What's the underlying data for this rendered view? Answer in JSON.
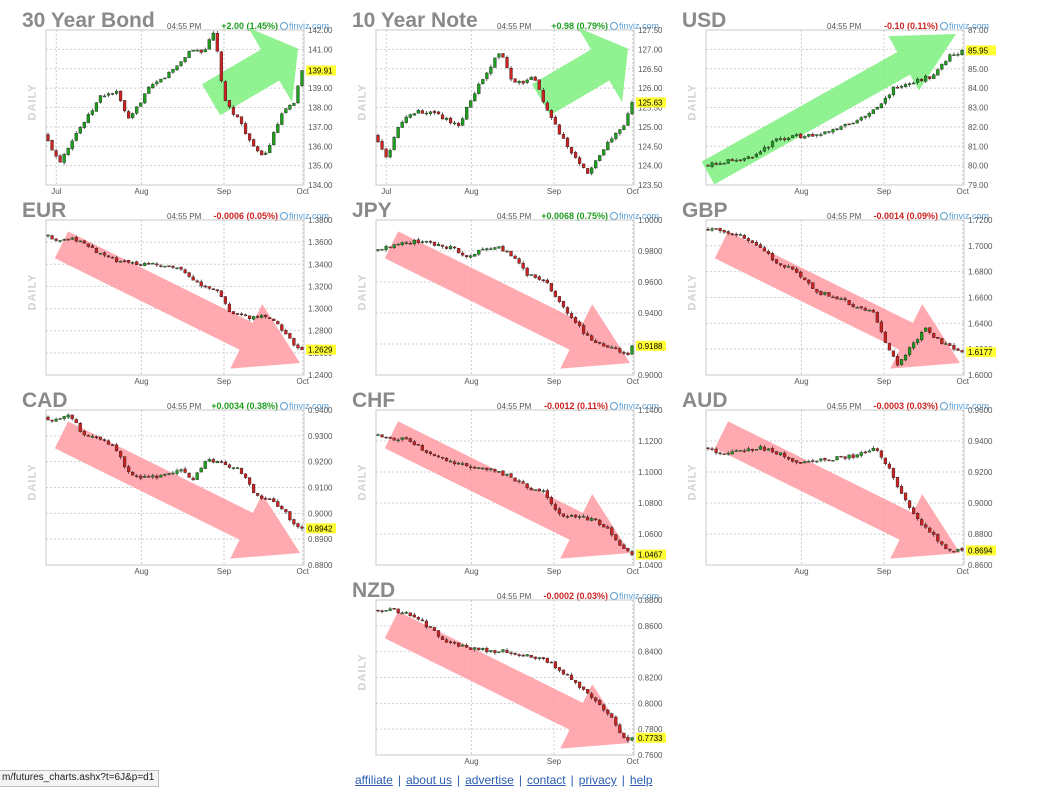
{
  "time_label": "04:55 PM",
  "brand": "finviz.com",
  "side_label": "DAILY",
  "status_url": "m/futures_charts.ashx?t=6J&p=d1",
  "footer_links": [
    "affiliate",
    "about us",
    "advertise",
    "contact",
    "privacy",
    "help"
  ],
  "colors": {
    "up": "#1e9e1e",
    "down": "#cc2222",
    "green_arrow": "#7cf07c",
    "red_arrow": "#ff9aa2",
    "last_price_bg": "#ffff33"
  },
  "chart_data": [
    {
      "id": "bond30",
      "type": "candlestick",
      "title": "30 Year Bond",
      "change": "+2.00 (1.45%)",
      "dir": "up",
      "last": 139.91,
      "last_label": "139.91",
      "ylim": [
        134,
        142
      ],
      "yticks": [
        "134.00",
        "135.00",
        "136.00",
        "137.00",
        "138.00",
        "139.00",
        "140.00",
        "141.00",
        "142.00"
      ],
      "xticks": [
        {
          "label": "Jul",
          "pos": 0.04
        },
        {
          "label": "Aug",
          "pos": 0.37
        },
        {
          "label": "Sep",
          "pos": 0.69
        },
        {
          "label": "Oct",
          "pos": 0.995
        }
      ],
      "arrow": "up",
      "arrow_color": "green",
      "anchors": [
        [
          0,
          136.6
        ],
        [
          0.06,
          135.2
        ],
        [
          0.12,
          136.6
        ],
        [
          0.18,
          137.7
        ],
        [
          0.22,
          138.6
        ],
        [
          0.28,
          138.8
        ],
        [
          0.33,
          137.3
        ],
        [
          0.4,
          138.9
        ],
        [
          0.47,
          139.6
        ],
        [
          0.52,
          140.2
        ],
        [
          0.57,
          141.0
        ],
        [
          0.62,
          140.9
        ],
        [
          0.66,
          141.9
        ],
        [
          0.7,
          138.3
        ],
        [
          0.76,
          137.3
        ],
        [
          0.82,
          135.7
        ],
        [
          0.86,
          135.6
        ],
        [
          0.92,
          137.6
        ],
        [
          0.97,
          138.3
        ],
        [
          1,
          139.91
        ]
      ]
    },
    {
      "id": "note10",
      "type": "candlestick",
      "title": "10 Year Note",
      "change": "+0.98 (0.79%)",
      "dir": "up",
      "last": 125.63,
      "last_label": "125.63",
      "ylim": [
        123.5,
        127.5
      ],
      "yticks": [
        "123.50",
        "124.00",
        "124.50",
        "125.00",
        "125.50",
        "126.00",
        "126.50",
        "127.00",
        "127.50"
      ],
      "xticks": [
        {
          "label": "Jul",
          "pos": 0.04
        },
        {
          "label": "Aug",
          "pos": 0.37
        },
        {
          "label": "Sep",
          "pos": 0.69
        },
        {
          "label": "Oct",
          "pos": 0.995
        }
      ],
      "arrow": "up",
      "arrow_color": "green",
      "anchors": [
        [
          0,
          124.8
        ],
        [
          0.05,
          124.2
        ],
        [
          0.1,
          125.1
        ],
        [
          0.17,
          125.4
        ],
        [
          0.25,
          125.3
        ],
        [
          0.33,
          125.0
        ],
        [
          0.38,
          125.8
        ],
        [
          0.45,
          126.5
        ],
        [
          0.49,
          127.0
        ],
        [
          0.53,
          126.2
        ],
        [
          0.58,
          126.1
        ],
        [
          0.62,
          126.3
        ],
        [
          0.66,
          125.6
        ],
        [
          0.72,
          124.8
        ],
        [
          0.78,
          124.2
        ],
        [
          0.83,
          123.8
        ],
        [
          0.88,
          124.3
        ],
        [
          0.94,
          124.9
        ],
        [
          0.97,
          125.0
        ],
        [
          1,
          125.63
        ]
      ]
    },
    {
      "id": "usd",
      "type": "candlestick",
      "title": "USD",
      "change": "-0.10 (0.11%)",
      "dir": "down",
      "last": 85.95,
      "last_label": "85.95",
      "ylim": [
        79,
        87
      ],
      "yticks": [
        "79.00",
        "80.00",
        "81.00",
        "82.00",
        "83.00",
        "84.00",
        "85.00",
        "86.00",
        "87.00"
      ],
      "xticks": [
        {
          "label": "Aug",
          "pos": 0.37
        },
        {
          "label": "Sep",
          "pos": 0.69
        },
        {
          "label": "Oct",
          "pos": 0.995
        }
      ],
      "arrow": "up",
      "arrow_color": "green",
      "anchors": [
        [
          0,
          80.0
        ],
        [
          0.08,
          80.2
        ],
        [
          0.15,
          80.3
        ],
        [
          0.2,
          80.6
        ],
        [
          0.28,
          81.3
        ],
        [
          0.36,
          81.5
        ],
        [
          0.45,
          81.6
        ],
        [
          0.52,
          82.0
        ],
        [
          0.6,
          82.4
        ],
        [
          0.68,
          83.0
        ],
        [
          0.74,
          84.1
        ],
        [
          0.8,
          84.3
        ],
        [
          0.88,
          84.6
        ],
        [
          0.95,
          85.6
        ],
        [
          1,
          85.95
        ]
      ]
    },
    {
      "id": "eur",
      "type": "candlestick",
      "title": "EUR",
      "change": "-0.0006 (0.05%)",
      "dir": "down",
      "last": 1.2629,
      "last_label": "1.2629",
      "ylim": [
        1.24,
        1.38
      ],
      "yticks": [
        "1.2400",
        "1.2600",
        "1.2800",
        "1.3000",
        "1.3200",
        "1.3400",
        "1.3600",
        "1.3800"
      ],
      "xticks": [
        {
          "label": "Aug",
          "pos": 0.37
        },
        {
          "label": "Sep",
          "pos": 0.69
        },
        {
          "label": "Oct",
          "pos": 0.995
        }
      ],
      "arrow": "down",
      "arrow_color": "red",
      "anchors": [
        [
          0,
          1.366
        ],
        [
          0.06,
          1.362
        ],
        [
          0.12,
          1.363
        ],
        [
          0.2,
          1.352
        ],
        [
          0.28,
          1.344
        ],
        [
          0.36,
          1.341
        ],
        [
          0.45,
          1.339
        ],
        [
          0.52,
          1.337
        ],
        [
          0.6,
          1.322
        ],
        [
          0.68,
          1.316
        ],
        [
          0.72,
          1.295
        ],
        [
          0.8,
          1.292
        ],
        [
          0.86,
          1.294
        ],
        [
          0.92,
          1.282
        ],
        [
          0.97,
          1.268
        ],
        [
          1,
          1.2629
        ]
      ]
    },
    {
      "id": "jpy",
      "type": "candlestick",
      "title": "JPY",
      "change": "+0.0068 (0.75%)",
      "dir": "up",
      "last": 0.9188,
      "last_label": "0.9188",
      "ylim": [
        0.9,
        1.0
      ],
      "yticks": [
        "0.9000",
        "0.9200",
        "0.9400",
        "0.9600",
        "0.9800",
        "1.0000"
      ],
      "xticks": [
        {
          "label": "Aug",
          "pos": 0.37
        },
        {
          "label": "Sep",
          "pos": 0.69
        },
        {
          "label": "Oct",
          "pos": 0.995
        }
      ],
      "arrow": "down",
      "arrow_color": "red",
      "anchors": [
        [
          0,
          0.98
        ],
        [
          0.08,
          0.983
        ],
        [
          0.15,
          0.986
        ],
        [
          0.22,
          0.985
        ],
        [
          0.3,
          0.982
        ],
        [
          0.36,
          0.977
        ],
        [
          0.42,
          0.981
        ],
        [
          0.47,
          0.983
        ],
        [
          0.53,
          0.978
        ],
        [
          0.6,
          0.964
        ],
        [
          0.66,
          0.962
        ],
        [
          0.7,
          0.951
        ],
        [
          0.76,
          0.938
        ],
        [
          0.82,
          0.926
        ],
        [
          0.88,
          0.919
        ],
        [
          0.94,
          0.917
        ],
        [
          0.98,
          0.912
        ],
        [
          1,
          0.9188
        ]
      ]
    },
    {
      "id": "gbp",
      "type": "candlestick",
      "title": "GBP",
      "change": "-0.0014 (0.09%)",
      "dir": "down",
      "last": 1.6177,
      "last_label": "1.6177",
      "ylim": [
        1.6,
        1.72
      ],
      "yticks": [
        "1.6000",
        "1.6200",
        "1.6400",
        "1.6600",
        "1.6800",
        "1.7000",
        "1.7200"
      ],
      "xticks": [
        {
          "label": "Aug",
          "pos": 0.37
        },
        {
          "label": "Sep",
          "pos": 0.69
        },
        {
          "label": "Oct",
          "pos": 0.995
        }
      ],
      "arrow": "down",
      "arrow_color": "red",
      "anchors": [
        [
          0,
          1.713
        ],
        [
          0.08,
          1.711
        ],
        [
          0.15,
          1.708
        ],
        [
          0.22,
          1.697
        ],
        [
          0.3,
          1.685
        ],
        [
          0.36,
          1.68
        ],
        [
          0.44,
          1.664
        ],
        [
          0.52,
          1.66
        ],
        [
          0.6,
          1.652
        ],
        [
          0.66,
          1.648
        ],
        [
          0.7,
          1.626
        ],
        [
          0.75,
          1.609
        ],
        [
          0.8,
          1.621
        ],
        [
          0.86,
          1.637
        ],
        [
          0.9,
          1.628
        ],
        [
          0.95,
          1.622
        ],
        [
          1,
          1.6177
        ]
      ]
    },
    {
      "id": "cad",
      "type": "candlestick",
      "title": "CAD",
      "change": "+0.0034 (0.38%)",
      "dir": "up",
      "last": 0.8942,
      "last_label": "0.8942",
      "ylim": [
        0.88,
        0.94
      ],
      "yticks": [
        "0.8800",
        "0.8900",
        "0.9000",
        "0.9100",
        "0.9200",
        "0.9300",
        "0.9400"
      ],
      "xticks": [
        {
          "label": "Aug",
          "pos": 0.37
        },
        {
          "label": "Sep",
          "pos": 0.69
        },
        {
          "label": "Oct",
          "pos": 0.995
        }
      ],
      "arrow": "down",
      "arrow_color": "red",
      "anchors": [
        [
          0,
          0.937
        ],
        [
          0.05,
          0.936
        ],
        [
          0.1,
          0.938
        ],
        [
          0.15,
          0.931
        ],
        [
          0.22,
          0.929
        ],
        [
          0.28,
          0.925
        ],
        [
          0.32,
          0.916
        ],
        [
          0.38,
          0.914
        ],
        [
          0.45,
          0.914
        ],
        [
          0.52,
          0.917
        ],
        [
          0.58,
          0.913
        ],
        [
          0.63,
          0.921
        ],
        [
          0.7,
          0.919
        ],
        [
          0.76,
          0.917
        ],
        [
          0.82,
          0.907
        ],
        [
          0.88,
          0.905
        ],
        [
          0.93,
          0.901
        ],
        [
          0.97,
          0.895
        ],
        [
          1,
          0.8942
        ]
      ]
    },
    {
      "id": "chf",
      "type": "candlestick",
      "title": "CHF",
      "change": "-0.0012 (0.11%)",
      "dir": "down",
      "last": 1.0467,
      "last_label": "1.0467",
      "ylim": [
        1.04,
        1.14
      ],
      "yticks": [
        "1.0400",
        "1.0600",
        "1.0800",
        "1.1000",
        "1.1200",
        "1.1400"
      ],
      "xticks": [
        {
          "label": "Aug",
          "pos": 0.37
        },
        {
          "label": "Sep",
          "pos": 0.69
        },
        {
          "label": "Oct",
          "pos": 0.995
        }
      ],
      "arrow": "down",
      "arrow_color": "red",
      "anchors": [
        [
          0,
          1.124
        ],
        [
          0.06,
          1.121
        ],
        [
          0.12,
          1.122
        ],
        [
          0.2,
          1.113
        ],
        [
          0.28,
          1.108
        ],
        [
          0.36,
          1.104
        ],
        [
          0.44,
          1.102
        ],
        [
          0.52,
          1.098
        ],
        [
          0.6,
          1.09
        ],
        [
          0.66,
          1.087
        ],
        [
          0.72,
          1.072
        ],
        [
          0.8,
          1.071
        ],
        [
          0.86,
          1.069
        ],
        [
          0.92,
          1.061
        ],
        [
          0.97,
          1.05
        ],
        [
          1,
          1.0467
        ]
      ]
    },
    {
      "id": "aud",
      "type": "candlestick",
      "title": "AUD",
      "change": "-0.0003 (0.03%)",
      "dir": "down",
      "last": 0.8694,
      "last_label": "0.8694",
      "ylim": [
        0.86,
        0.96
      ],
      "yticks": [
        "0.8600",
        "0.8800",
        "0.9000",
        "0.9200",
        "0.9400",
        "0.9600"
      ],
      "xticks": [
        {
          "label": "Aug",
          "pos": 0.37
        },
        {
          "label": "Sep",
          "pos": 0.69
        },
        {
          "label": "Oct",
          "pos": 0.995
        }
      ],
      "arrow": "down",
      "arrow_color": "red",
      "anchors": [
        [
          0,
          0.936
        ],
        [
          0.06,
          0.931
        ],
        [
          0.14,
          0.933
        ],
        [
          0.22,
          0.936
        ],
        [
          0.3,
          0.931
        ],
        [
          0.36,
          0.926
        ],
        [
          0.44,
          0.928
        ],
        [
          0.52,
          0.929
        ],
        [
          0.6,
          0.931
        ],
        [
          0.66,
          0.936
        ],
        [
          0.72,
          0.922
        ],
        [
          0.78,
          0.901
        ],
        [
          0.84,
          0.887
        ],
        [
          0.9,
          0.877
        ],
        [
          0.95,
          0.869
        ],
        [
          1,
          0.8694
        ]
      ]
    },
    {
      "id": "nzd",
      "type": "candlestick",
      "title": "NZD",
      "change": "-0.0002 (0.03%)",
      "dir": "down",
      "last": 0.7733,
      "last_label": "0.7733",
      "ylim": [
        0.76,
        0.88
      ],
      "yticks": [
        "0.7600",
        "0.7800",
        "0.8000",
        "0.8200",
        "0.8400",
        "0.8600",
        "0.8800"
      ],
      "xticks": [
        {
          "label": "Aug",
          "pos": 0.37
        },
        {
          "label": "Sep",
          "pos": 0.69
        },
        {
          "label": "Oct",
          "pos": 0.995
        }
      ],
      "arrow": "down",
      "arrow_color": "red",
      "anchors": [
        [
          0,
          0.872
        ],
        [
          0.06,
          0.872
        ],
        [
          0.12,
          0.871
        ],
        [
          0.2,
          0.861
        ],
        [
          0.28,
          0.848
        ],
        [
          0.36,
          0.843
        ],
        [
          0.44,
          0.841
        ],
        [
          0.52,
          0.84
        ],
        [
          0.6,
          0.836
        ],
        [
          0.68,
          0.832
        ],
        [
          0.76,
          0.82
        ],
        [
          0.82,
          0.808
        ],
        [
          0.88,
          0.797
        ],
        [
          0.93,
          0.786
        ],
        [
          0.97,
          0.772
        ],
        [
          1,
          0.7733
        ]
      ]
    }
  ]
}
